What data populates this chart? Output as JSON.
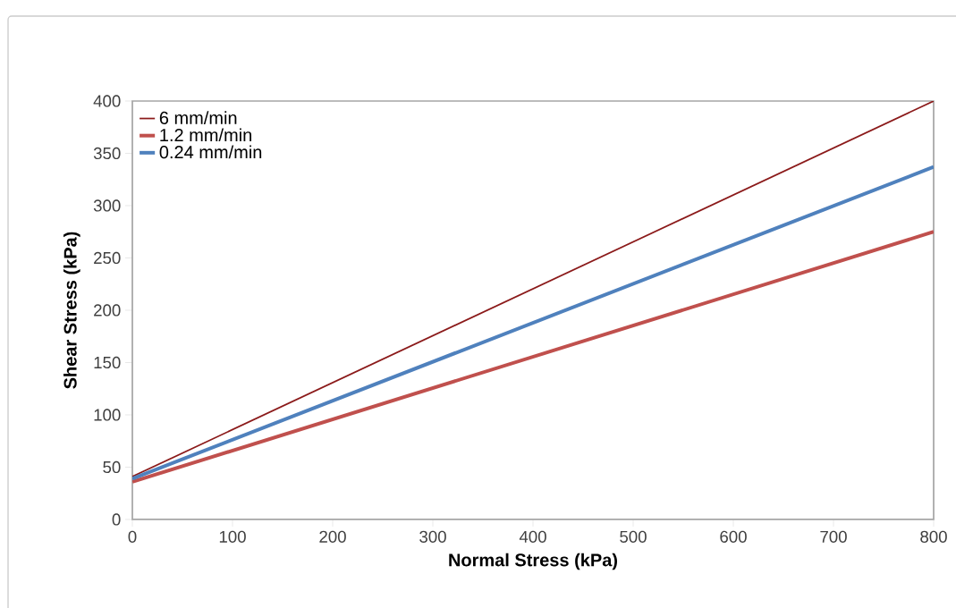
{
  "chart_data": {
    "type": "line",
    "xlabel": "Normal Stress (kPa)",
    "ylabel": "Shear Stress (kPa)",
    "x": [
      0,
      800
    ],
    "series": [
      {
        "name": "6 mm/min",
        "color": "#8b1a1a",
        "values": [
          41,
          400
        ]
      },
      {
        "name": "1.2 mm/min",
        "color": "#c0504d",
        "values": [
          36,
          275
        ]
      },
      {
        "name": "0.24 mm/min",
        "color": "#4f81bd",
        "values": [
          39,
          337
        ]
      }
    ],
    "xlim": [
      0,
      800
    ],
    "ylim": [
      0,
      400
    ],
    "xticks": [
      0,
      100,
      200,
      300,
      400,
      500,
      600,
      700,
      800
    ],
    "yticks": [
      0,
      50,
      100,
      150,
      200,
      250,
      300,
      350,
      400
    ],
    "grid": false,
    "legend": "top left",
    "marker": "none",
    "line_style": "solid"
  }
}
